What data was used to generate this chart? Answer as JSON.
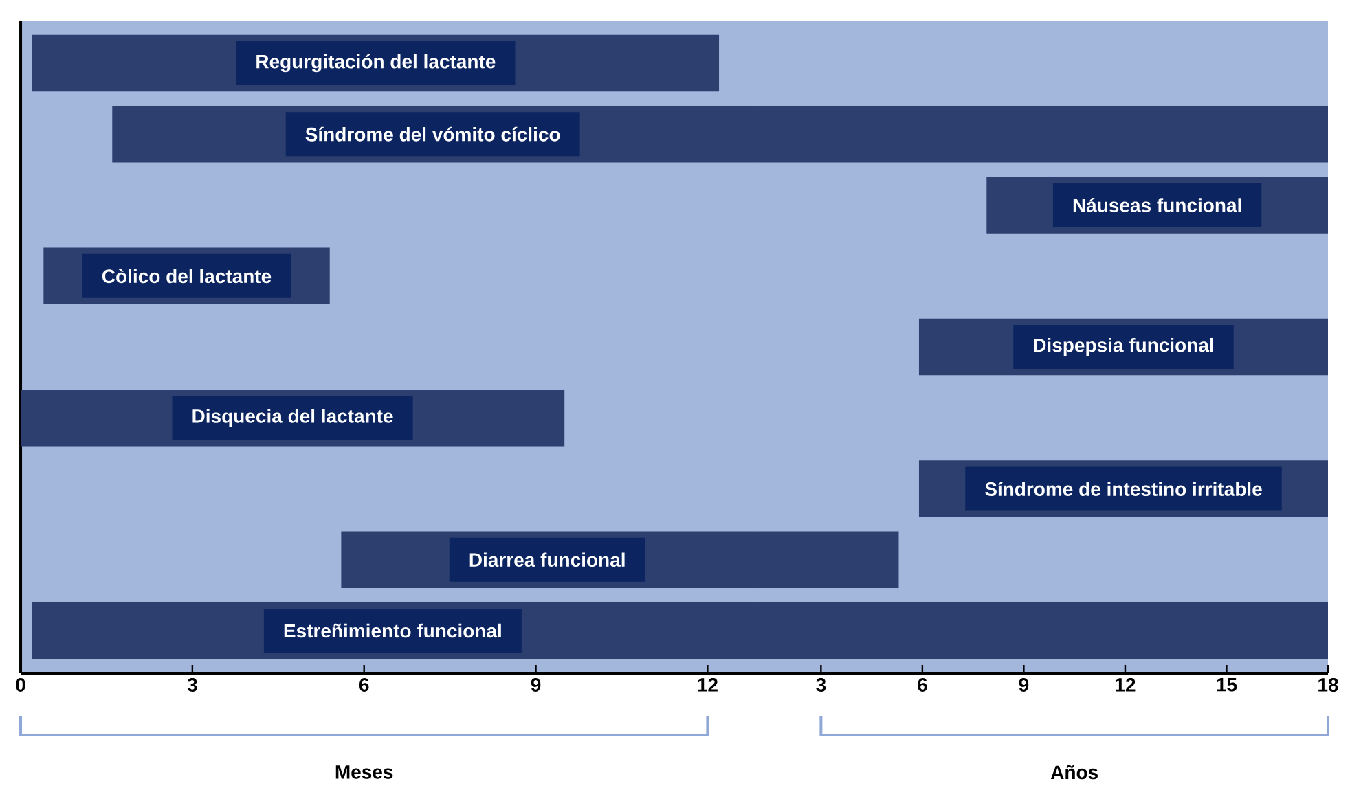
{
  "chart_data": [
    {
      "type": "bar",
      "orientation": "horizontal",
      "tick_labels": "x",
      "color": "#2c3f6f",
      "xlabel": "Meses",
      "categories": [
        "Regurgitación del lactante",
        "Síndrome del vómito cíclico",
        null,
        "Còlico del lactante",
        null,
        "Disquecia del lactante",
        null,
        "Diarrea funcional",
        "Estreñimiento funcional"
      ],
      "base": [
        0.2,
        1.6,
        null,
        0.4,
        null,
        0,
        null,
        5.6,
        0.2
      ],
      "values": [
        12.0,
        11.2,
        null,
        5.0,
        null,
        9.5,
        null,
        7.2,
        12.6
      ],
      "xlim": [
        0,
        12.8
      ],
      "xticks": [
        0,
        3,
        6,
        9,
        12
      ]
    },
    {
      "type": "bar",
      "orientation": "horizontal",
      "tick_labels": "x",
      "color": "#2c3f6f",
      "xlabel": "Años",
      "categories": [
        null,
        null,
        "Náuseas funcional",
        null,
        "Dispepsia funcional",
        null,
        "Síndrome de intestino irritable",
        null,
        null
      ],
      "base": [
        null,
        1,
        7.9,
        null,
        5.9,
        null,
        5.9,
        1,
        1
      ],
      "values": [
        null,
        17,
        10.1,
        null,
        12.1,
        null,
        12.1,
        4.3,
        17
      ],
      "xlim": [
        1,
        18
      ],
      "xticks": [
        3,
        6,
        9,
        12,
        15,
        18
      ]
    }
  ]
}
